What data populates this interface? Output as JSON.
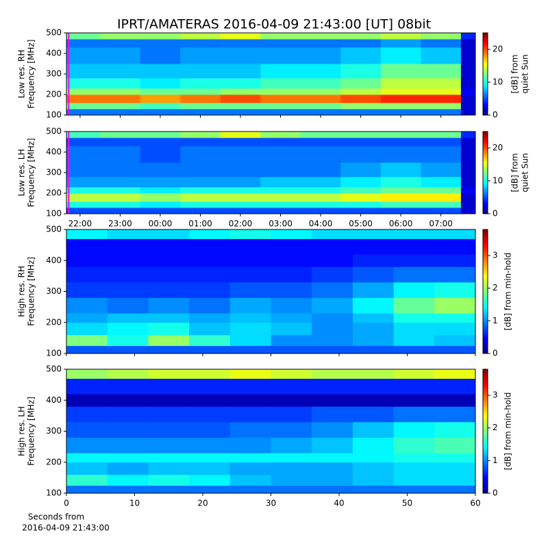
{
  "chart_data": [
    {
      "type": "heatmap",
      "title": "IPRT/AMATERAS 2016-04-09 21:43:00 [UT]   08bit",
      "ylabel": [
        "Low res. RH",
        "Frequency [MHz]"
      ],
      "xlim": [
        21.66,
        31.86
      ],
      "ylim": [
        100,
        500
      ],
      "yticks": [
        100,
        200,
        300,
        400,
        500
      ],
      "xbins": [
        21.66,
        22.5,
        23.5,
        24.5,
        25.5,
        26.5,
        27.5,
        28.5,
        29.5,
        30.5,
        31.5,
        31.86
      ],
      "ybins": [
        100,
        130,
        160,
        200,
        230,
        280,
        350,
        430,
        470,
        500
      ],
      "values": [
        [
          6,
          6,
          6,
          6,
          6,
          6,
          6,
          6,
          6,
          6,
          2
        ],
        [
          12,
          12,
          11,
          12,
          12,
          12,
          12,
          13,
          13,
          13,
          2
        ],
        [
          19,
          19,
          18,
          19,
          20,
          19,
          19,
          20,
          21,
          21,
          2
        ],
        [
          13,
          13,
          12,
          12,
          13,
          13,
          13,
          14,
          15,
          15,
          3
        ],
        [
          10,
          10,
          9,
          10,
          10,
          11,
          11,
          12,
          14,
          14,
          2
        ],
        [
          8,
          8,
          8,
          8,
          8,
          9,
          9,
          10,
          12,
          12,
          2
        ],
        [
          7,
          7,
          6,
          7,
          7,
          7,
          7,
          8,
          9,
          8,
          2
        ],
        [
          6,
          6,
          6,
          6,
          6,
          6,
          6,
          6,
          7,
          6,
          2
        ],
        [
          12,
          13,
          13,
          14,
          15,
          13,
          13,
          13,
          14,
          13,
          4
        ]
      ],
      "colormap": "jet",
      "clim": [
        0,
        25
      ],
      "cticks": [
        0,
        10,
        20
      ],
      "clabel": [
        "[dB] from",
        "quiet Sun"
      ],
      "marker_x": 21.7167,
      "marker_color": "#ff00ff"
    },
    {
      "type": "heatmap",
      "ylabel": [
        "Low res. LH",
        "Frequency [MHz]"
      ],
      "xlim": [
        21.66,
        31.86
      ],
      "ylim": [
        100,
        500
      ],
      "yticks": [
        100,
        200,
        300,
        400,
        500
      ],
      "xticks": [
        {
          "value": 22,
          "label": "22:00"
        },
        {
          "value": 23,
          "label": "23:00"
        },
        {
          "value": 24,
          "label": "00:00"
        },
        {
          "value": 25,
          "label": "01:00"
        },
        {
          "value": 26,
          "label": "02:00"
        },
        {
          "value": 27,
          "label": "03:00"
        },
        {
          "value": 28,
          "label": "04:00"
        },
        {
          "value": 29,
          "label": "05:00"
        },
        {
          "value": 30,
          "label": "06:00"
        },
        {
          "value": 31,
          "label": "07:00"
        }
      ],
      "xbins": [
        21.66,
        22.5,
        23.5,
        24.5,
        25.5,
        26.5,
        27.5,
        28.5,
        29.5,
        30.5,
        31.5,
        31.86
      ],
      "ybins": [
        100,
        130,
        160,
        200,
        230,
        280,
        350,
        430,
        470,
        500
      ],
      "values": [
        [
          5,
          5,
          5,
          5,
          5,
          5,
          5,
          5,
          5,
          5,
          2
        ],
        [
          10,
          10,
          9,
          10,
          10,
          10,
          10,
          10,
          11,
          11,
          2
        ],
        [
          14,
          14,
          13,
          14,
          14,
          14,
          14,
          15,
          16,
          16,
          2
        ],
        [
          10,
          10,
          9,
          10,
          10,
          10,
          10,
          11,
          12,
          12,
          3
        ],
        [
          7,
          7,
          7,
          7,
          7,
          8,
          8,
          9,
          10,
          9,
          2
        ],
        [
          6,
          6,
          6,
          6,
          6,
          6,
          6,
          7,
          8,
          7,
          2
        ],
        [
          6,
          6,
          5,
          6,
          6,
          6,
          6,
          6,
          6,
          6,
          2
        ],
        [
          5,
          5,
          5,
          5,
          5,
          5,
          5,
          5,
          5,
          5,
          2
        ],
        [
          11,
          12,
          12,
          13,
          15,
          13,
          12,
          12,
          12,
          12,
          4
        ]
      ],
      "colormap": "jet",
      "clim": [
        0,
        25
      ],
      "cticks": [
        0,
        10,
        20
      ],
      "clabel": [
        "[dB] from",
        "quiet Sun"
      ],
      "marker_x": 21.7167,
      "marker_color": "#ff00ff"
    },
    {
      "type": "heatmap",
      "ylabel": [
        "High res. RH",
        "Frequency [MHz]"
      ],
      "xlim": [
        0,
        60
      ],
      "ylim": [
        100,
        500
      ],
      "yticks": [
        100,
        200,
        300,
        400,
        500
      ],
      "xbins": [
        0,
        6,
        12,
        18,
        24,
        30,
        36,
        42,
        48,
        54,
        60
      ],
      "ybins": [
        100,
        125,
        160,
        200,
        230,
        280,
        330,
        380,
        420,
        470,
        500
      ],
      "values": [
        [
          0.8,
          0.8,
          0.8,
          0.8,
          0.8,
          0.8,
          0.8,
          0.8,
          0.8,
          0.8
        ],
        [
          1.9,
          1.5,
          2.0,
          1.6,
          1.3,
          1.0,
          1.0,
          1.1,
          1.3,
          1.2
        ],
        [
          1.3,
          1.4,
          1.5,
          1.2,
          1.3,
          1.2,
          1.0,
          1.1,
          1.3,
          1.3
        ],
        [
          1.1,
          1.2,
          1.2,
          1.1,
          1.2,
          1.1,
          1.0,
          1.2,
          1.5,
          1.5
        ],
        [
          1.0,
          0.9,
          1.0,
          0.9,
          1.1,
          1.0,
          1.1,
          1.4,
          1.8,
          2.0
        ],
        [
          0.7,
          0.7,
          0.7,
          0.7,
          0.8,
          0.8,
          0.9,
          1.1,
          1.4,
          1.5
        ],
        [
          0.6,
          0.6,
          0.6,
          0.6,
          0.6,
          0.6,
          0.7,
          0.8,
          0.9,
          0.9
        ],
        [
          0.5,
          0.5,
          0.5,
          0.5,
          0.5,
          0.5,
          0.5,
          0.6,
          0.6,
          0.6
        ],
        [
          0.5,
          0.5,
          0.5,
          0.5,
          0.5,
          0.5,
          0.5,
          0.5,
          0.5,
          0.5
        ],
        [
          1.4,
          1.3,
          1.3,
          1.4,
          1.5,
          1.4,
          1.3,
          1.3,
          1.3,
          1.3
        ]
      ],
      "colormap": "jet",
      "clim": [
        0,
        3.8
      ],
      "cticks": [
        0,
        1,
        2,
        3
      ],
      "clabel": [
        "[dB] from min-hold"
      ]
    },
    {
      "type": "heatmap",
      "ylabel": [
        "High res. LH",
        "Frequency [MHz]"
      ],
      "xlabel": [
        "Seconds from",
        "2016-04-09 21:43:00"
      ],
      "xlim": [
        0,
        60
      ],
      "ylim": [
        100,
        500
      ],
      "yticks": [
        100,
        200,
        300,
        400,
        500
      ],
      "xticks": [
        0,
        10,
        20,
        30,
        40,
        50,
        60
      ],
      "xbins": [
        0,
        6,
        12,
        18,
        24,
        30,
        36,
        42,
        48,
        54,
        60
      ],
      "ybins": [
        100,
        125,
        160,
        200,
        230,
        280,
        330,
        380,
        420,
        470,
        500
      ],
      "values": [
        [
          0.9,
          0.9,
          0.9,
          0.9,
          0.9,
          0.9,
          0.9,
          0.9,
          0.9,
          0.9
        ],
        [
          1.6,
          1.4,
          1.5,
          1.4,
          1.2,
          1.1,
          1.1,
          1.2,
          1.3,
          1.3
        ],
        [
          1.2,
          1.1,
          1.2,
          1.2,
          1.1,
          1.1,
          1.1,
          1.2,
          1.3,
          1.3
        ],
        [
          1.4,
          1.4,
          1.4,
          1.4,
          1.4,
          1.4,
          1.4,
          1.4,
          1.5,
          1.5
        ],
        [
          1.0,
          1.0,
          1.0,
          1.0,
          1.0,
          1.1,
          1.2,
          1.4,
          1.6,
          1.7
        ],
        [
          0.8,
          0.8,
          0.8,
          0.8,
          0.9,
          0.9,
          1.0,
          1.2,
          1.4,
          1.5
        ],
        [
          0.7,
          0.7,
          0.7,
          0.7,
          0.7,
          0.7,
          0.8,
          0.8,
          0.9,
          0.9
        ],
        [
          0.2,
          0.2,
          0.2,
          0.2,
          0.2,
          0.2,
          0.2,
          0.2,
          0.2,
          0.2
        ],
        [
          0.6,
          0.6,
          0.6,
          0.6,
          0.6,
          0.6,
          0.6,
          0.6,
          0.6,
          0.6
        ],
        [
          2.0,
          2.1,
          2.2,
          2.2,
          2.3,
          2.2,
          2.1,
          2.1,
          2.2,
          2.3
        ]
      ],
      "colormap": "jet",
      "clim": [
        0,
        3.8
      ],
      "cticks": [
        0,
        1,
        2,
        3
      ],
      "clabel": [
        "[dB] from min-hold"
      ]
    }
  ]
}
